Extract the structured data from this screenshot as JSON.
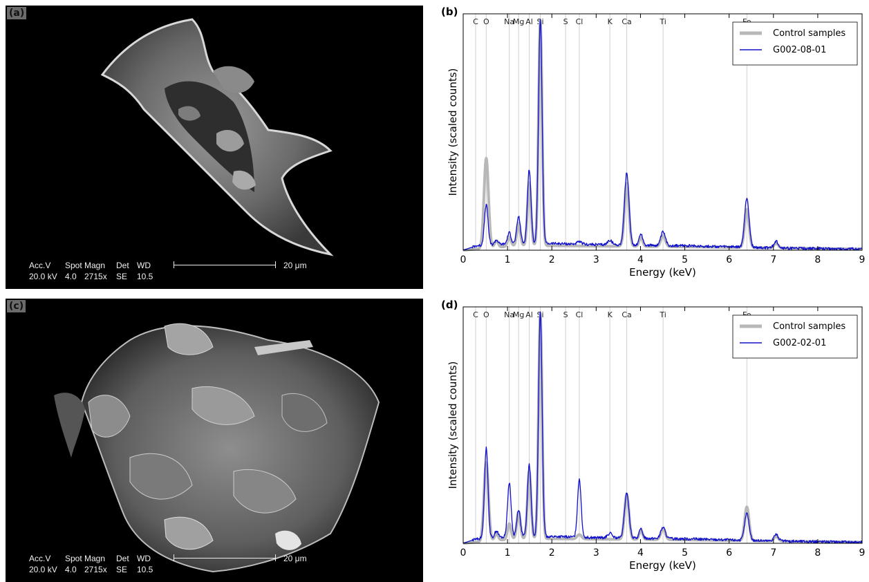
{
  "panels": {
    "a": {
      "label": "(a)",
      "sem": {
        "headers": [
          "Acc.V",
          "Spot",
          "Magn",
          "Det",
          "WD"
        ],
        "values": [
          "20.0 kV",
          "4.0",
          "2715x",
          "SE",
          "10.5"
        ],
        "scale": "20 μm"
      }
    },
    "c": {
      "label": "(c)",
      "sem": {
        "headers": [
          "Acc.V",
          "Spot",
          "Magn",
          "Det",
          "WD"
        ],
        "values": [
          "20.0 kV",
          "4.0",
          "2715x",
          "SE",
          "10.5"
        ],
        "scale": "20 μm"
      }
    }
  },
  "chart_data": [
    {
      "panel_label": "(b)",
      "type": "line",
      "xlabel": "Energy (keV)",
      "ylabel": "Intensity (scaled counts)",
      "xlim": [
        0,
        9
      ],
      "ylim": [
        0,
        1.05
      ],
      "xticks": [
        0,
        1,
        2,
        3,
        4,
        5,
        6,
        7,
        8,
        9
      ],
      "legend_position": "top-right",
      "element_lines": [
        {
          "label": "C",
          "energy": 0.28
        },
        {
          "label": "O",
          "energy": 0.52
        },
        {
          "label": "Na",
          "energy": 1.04
        },
        {
          "label": "Mg",
          "energy": 1.25
        },
        {
          "label": "Al",
          "energy": 1.49
        },
        {
          "label": "Si",
          "energy": 1.74
        },
        {
          "label": "S",
          "energy": 2.31
        },
        {
          "label": "Cl",
          "energy": 2.62
        },
        {
          "label": "K",
          "energy": 3.31
        },
        {
          "label": "Ca",
          "energy": 3.69
        },
        {
          "label": "Ti",
          "energy": 4.51
        },
        {
          "label": "Fe",
          "energy": 6.4
        }
      ],
      "series": [
        {
          "name": "Control samples",
          "color": "#b8b8b8",
          "peaks": [
            [
              0.52,
              0.4,
              0.05
            ],
            [
              0.75,
              0.03,
              0.04
            ],
            [
              1.04,
              0.04,
              0.04
            ],
            [
              1.25,
              0.1,
              0.04
            ],
            [
              1.49,
              0.28,
              0.04
            ],
            [
              1.74,
              1.0,
              0.04
            ],
            [
              3.69,
              0.28,
              0.05
            ],
            [
              4.01,
              0.04,
              0.04
            ],
            [
              4.51,
              0.05,
              0.05
            ],
            [
              6.4,
              0.17,
              0.05
            ],
            [
              7.06,
              0.02,
              0.05
            ]
          ],
          "baseline": [
            [
              0,
              0.0
            ],
            [
              1.2,
              0.02
            ],
            [
              2,
              0.02
            ],
            [
              5,
              0.015
            ],
            [
              9,
              0.005
            ]
          ]
        },
        {
          "name": "G002-08-01",
          "color": "#1010cc",
          "peaks": [
            [
              0.52,
              0.18,
              0.04
            ],
            [
              0.75,
              0.02,
              0.04
            ],
            [
              1.04,
              0.05,
              0.04
            ],
            [
              1.25,
              0.12,
              0.04
            ],
            [
              1.49,
              0.33,
              0.04
            ],
            [
              1.74,
              1.0,
              0.04
            ],
            [
              2.62,
              0.01,
              0.05
            ],
            [
              3.31,
              0.02,
              0.05
            ],
            [
              3.69,
              0.32,
              0.05
            ],
            [
              4.01,
              0.05,
              0.04
            ],
            [
              4.51,
              0.06,
              0.05
            ],
            [
              6.4,
              0.22,
              0.05
            ],
            [
              7.06,
              0.03,
              0.05
            ]
          ],
          "baseline": [
            [
              0,
              0.0
            ],
            [
              0.3,
              0.02
            ],
            [
              1.2,
              0.03
            ],
            [
              2,
              0.03
            ],
            [
              3,
              0.025
            ],
            [
              5,
              0.02
            ],
            [
              6,
              0.015
            ],
            [
              7,
              0.01
            ],
            [
              9,
              0.005
            ]
          ]
        }
      ]
    },
    {
      "panel_label": "(d)",
      "type": "line",
      "xlabel": "Energy (keV)",
      "ylabel": "Intensity (scaled counts)",
      "xlim": [
        0,
        9
      ],
      "ylim": [
        0,
        1.05
      ],
      "xticks": [
        0,
        1,
        2,
        3,
        4,
        5,
        6,
        7,
        8,
        9
      ],
      "legend_position": "top-right",
      "element_lines": [
        {
          "label": "C",
          "energy": 0.28
        },
        {
          "label": "O",
          "energy": 0.52
        },
        {
          "label": "Na",
          "energy": 1.04
        },
        {
          "label": "Mg",
          "energy": 1.25
        },
        {
          "label": "Al",
          "energy": 1.49
        },
        {
          "label": "Si",
          "energy": 1.74
        },
        {
          "label": "S",
          "energy": 2.31
        },
        {
          "label": "Cl",
          "energy": 2.62
        },
        {
          "label": "K",
          "energy": 3.31
        },
        {
          "label": "Ca",
          "energy": 3.69
        },
        {
          "label": "Ti",
          "energy": 4.51
        },
        {
          "label": "Fe",
          "energy": 6.4
        }
      ],
      "series": [
        {
          "name": "Control samples",
          "color": "#b8b8b8",
          "peaks": [
            [
              0.52,
              0.35,
              0.05
            ],
            [
              0.75,
              0.03,
              0.04
            ],
            [
              1.04,
              0.07,
              0.04
            ],
            [
              1.25,
              0.12,
              0.04
            ],
            [
              1.49,
              0.3,
              0.04
            ],
            [
              1.74,
              1.0,
              0.04
            ],
            [
              2.62,
              0.02,
              0.05
            ],
            [
              3.69,
              0.2,
              0.05
            ],
            [
              4.01,
              0.04,
              0.04
            ],
            [
              4.51,
              0.05,
              0.05
            ],
            [
              6.4,
              0.15,
              0.05
            ],
            [
              7.06,
              0.02,
              0.05
            ]
          ],
          "baseline": [
            [
              0,
              0.0
            ],
            [
              1.2,
              0.02
            ],
            [
              2,
              0.02
            ],
            [
              5,
              0.015
            ],
            [
              9,
              0.005
            ]
          ]
        },
        {
          "name": "G002-02-01",
          "color": "#1010cc",
          "peaks": [
            [
              0.52,
              0.4,
              0.04
            ],
            [
              0.75,
              0.03,
              0.04
            ],
            [
              1.04,
              0.24,
              0.04
            ],
            [
              1.25,
              0.12,
              0.04
            ],
            [
              1.49,
              0.32,
              0.04
            ],
            [
              1.74,
              1.0,
              0.04
            ],
            [
              2.62,
              0.26,
              0.04
            ],
            [
              3.31,
              0.02,
              0.05
            ],
            [
              3.69,
              0.2,
              0.05
            ],
            [
              4.01,
              0.04,
              0.04
            ],
            [
              4.51,
              0.05,
              0.05
            ],
            [
              6.4,
              0.12,
              0.05
            ],
            [
              7.06,
              0.03,
              0.05
            ]
          ],
          "baseline": [
            [
              0,
              0.0
            ],
            [
              0.3,
              0.02
            ],
            [
              1.2,
              0.03
            ],
            [
              2,
              0.03
            ],
            [
              3,
              0.025
            ],
            [
              5,
              0.02
            ],
            [
              6,
              0.015
            ],
            [
              7,
              0.01
            ],
            [
              9,
              0.005
            ]
          ]
        }
      ]
    }
  ]
}
